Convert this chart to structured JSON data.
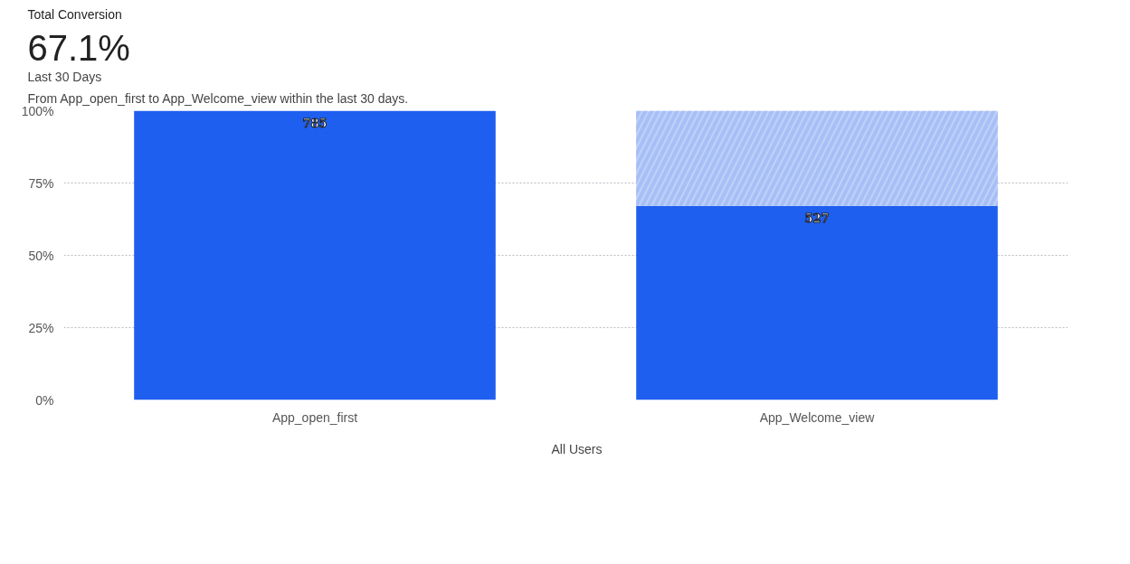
{
  "chart_data": {
    "type": "bar",
    "title": "Total Conversion",
    "annotations": [
      "67.1%",
      "Last 30 Days",
      "From App_open_first to App_Welcome_view within the last 30 days.",
      {
        "text": "785",
        "x": "App_open_first",
        "y": 100
      },
      {
        "text": "527",
        "x": "App_Welcome_view",
        "y": 67.1
      }
    ],
    "categories": [
      "App_open_first",
      "App_Welcome_view"
    ],
    "stacked": true,
    "series": [
      {
        "name": "All Users",
        "color": "#1f5fef",
        "values": [
          100,
          67.1
        ]
      },
      {
        "color": "#bfd0f8",
        "values": [
          0,
          32.9
        ]
      }
    ],
    "ylim": [
      0,
      100
    ],
    "yticks": [
      {
        "value": 0,
        "label": "0%"
      },
      {
        "value": 25,
        "label": "25%"
      },
      {
        "value": 50,
        "label": "50%"
      },
      {
        "value": 75,
        "label": "75%"
      },
      {
        "value": 100,
        "label": "100%"
      }
    ],
    "grid": "y",
    "legend": "bottom"
  }
}
